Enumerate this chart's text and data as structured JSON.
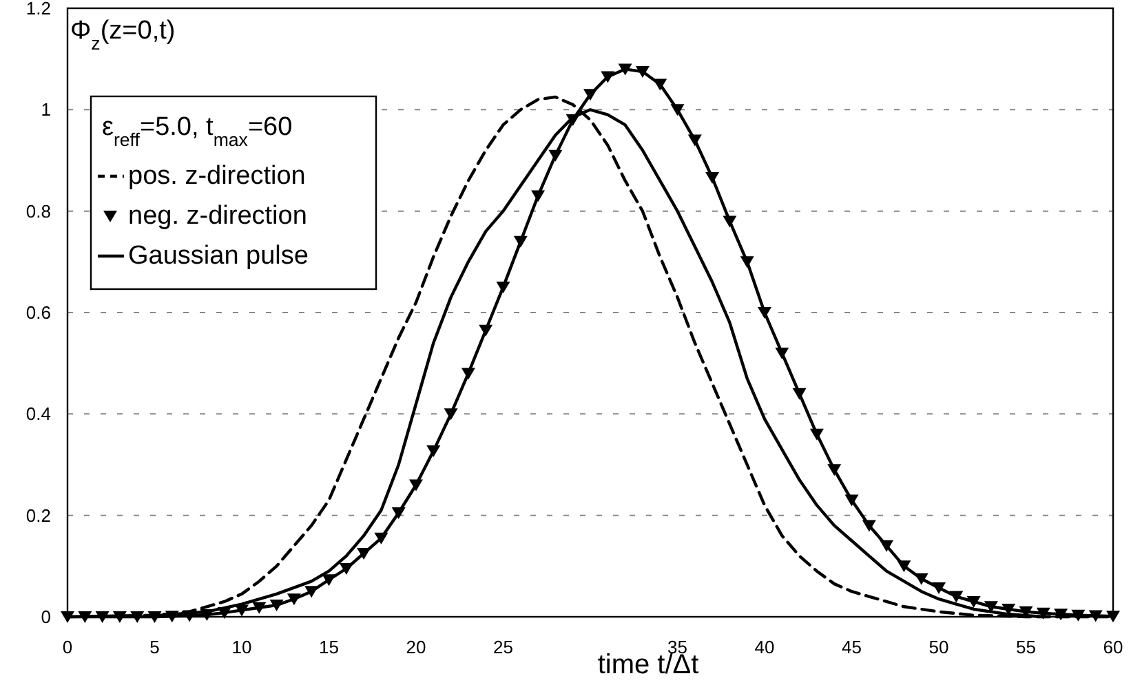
{
  "chart_data": {
    "type": "line",
    "xlabel": "time t/Δt",
    "ylabel": "Φ$_{z}$(z=0,t)",
    "legend_title": "ε$_{reff}$=5.0, t$_{max}$=60",
    "legend": "top left",
    "grid": "y",
    "xlim": [
      0,
      60
    ],
    "ylim": [
      0,
      1.2
    ],
    "xticks": [
      0,
      5,
      10,
      15,
      20,
      25,
      35,
      40,
      45,
      50,
      55,
      60
    ],
    "yticks": [
      0,
      0.2,
      0.4,
      0.6,
      0.8,
      1,
      1.2
    ],
    "series": [
      {
        "name": "pos. z-direction",
        "color": "#000000",
        "line_style": "dashed",
        "marker": "none",
        "x": [
          0,
          5,
          7,
          8,
          9,
          10,
          11,
          12,
          13,
          14,
          15,
          16,
          17,
          18,
          19,
          20,
          21,
          22,
          23,
          24,
          25,
          26,
          27,
          28,
          29,
          30,
          31,
          32,
          33,
          34,
          35,
          36,
          37,
          38,
          39,
          40,
          41,
          42,
          43,
          44,
          45,
          46,
          47,
          48,
          50,
          52,
          55,
          60
        ],
        "values": [
          0,
          0.003,
          0.01,
          0.02,
          0.03,
          0.045,
          0.07,
          0.1,
          0.14,
          0.18,
          0.23,
          0.31,
          0.39,
          0.47,
          0.55,
          0.62,
          0.71,
          0.79,
          0.86,
          0.92,
          0.97,
          1,
          1.02,
          1.025,
          1.01,
          0.98,
          0.93,
          0.86,
          0.8,
          0.71,
          0.63,
          0.54,
          0.46,
          0.38,
          0.3,
          0.22,
          0.16,
          0.12,
          0.09,
          0.065,
          0.05,
          0.04,
          0.03,
          0.02,
          0.01,
          0.003,
          0,
          0
        ]
      },
      {
        "name": "neg. z-direction",
        "color": "#000000",
        "line_style": "solid",
        "marker": "triangle",
        "x": [
          0,
          1,
          2,
          3,
          4,
          5,
          6,
          7,
          8,
          9,
          10,
          11,
          12,
          13,
          14,
          15,
          16,
          17,
          18,
          19,
          20,
          21,
          22,
          23,
          24,
          25,
          26,
          27,
          28,
          29,
          30,
          31,
          32,
          33,
          34,
          35,
          36,
          37,
          38,
          39,
          40,
          41,
          42,
          43,
          44,
          45,
          46,
          47,
          48,
          49,
          50,
          51,
          52,
          53,
          54,
          55,
          56,
          57,
          58,
          59,
          60
        ],
        "values": [
          0,
          0,
          0,
          0,
          0,
          0,
          0.001,
          0.002,
          0.004,
          0.008,
          0.013,
          0.018,
          0.023,
          0.035,
          0.05,
          0.073,
          0.095,
          0.125,
          0.155,
          0.205,
          0.26,
          0.327,
          0.4,
          0.48,
          0.565,
          0.65,
          0.74,
          0.83,
          0.91,
          0.98,
          1.03,
          1.065,
          1.08,
          1.075,
          1.05,
          1,
          0.94,
          0.866,
          0.78,
          0.7,
          0.6,
          0.52,
          0.44,
          0.36,
          0.29,
          0.23,
          0.18,
          0.14,
          0.1,
          0.075,
          0.057,
          0.04,
          0.03,
          0.02,
          0.015,
          0.01,
          0.007,
          0.005,
          0.003,
          0.002,
          0.001
        ]
      },
      {
        "name": "Gaussian pulse",
        "color": "#000000",
        "line_style": "solid",
        "marker": "none",
        "x": [
          5,
          8,
          10,
          12,
          14,
          15,
          16,
          17,
          18,
          19,
          20,
          21,
          22,
          23,
          24,
          25,
          26,
          27,
          28,
          29,
          30,
          31,
          32,
          33,
          34,
          35,
          36,
          37,
          38,
          39,
          40,
          41,
          42,
          43,
          44,
          45,
          46,
          47,
          48,
          49,
          50,
          51,
          52,
          54,
          56
        ],
        "values": [
          0.002,
          0.01,
          0.025,
          0.045,
          0.07,
          0.09,
          0.12,
          0.16,
          0.21,
          0.3,
          0.42,
          0.54,
          0.63,
          0.7,
          0.76,
          0.8,
          0.85,
          0.9,
          0.95,
          0.985,
          1,
          0.99,
          0.97,
          0.92,
          0.86,
          0.8,
          0.73,
          0.66,
          0.58,
          0.47,
          0.39,
          0.33,
          0.27,
          0.22,
          0.18,
          0.15,
          0.12,
          0.09,
          0.07,
          0.05,
          0.035,
          0.025,
          0.015,
          0.005,
          0
        ]
      }
    ]
  }
}
